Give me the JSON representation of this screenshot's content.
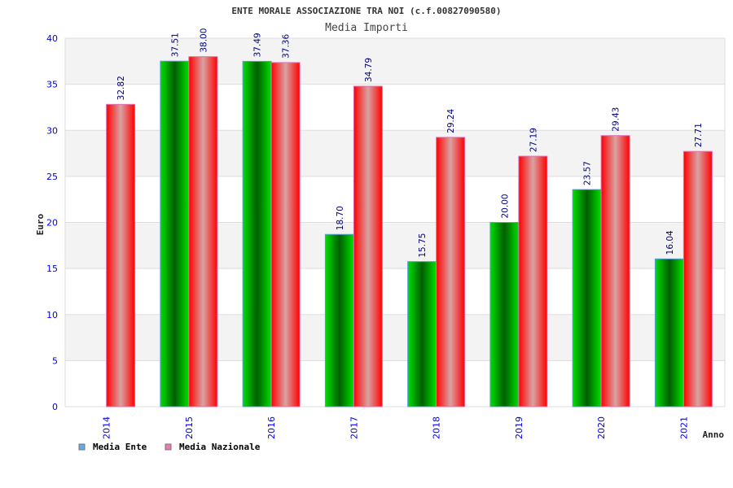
{
  "chart_data": {
    "type": "bar",
    "title": "ENTE MORALE ASSOCIAZIONE TRA NOI (c.f.00827090580)",
    "subtitle": "Media Importi",
    "xlabel": "Anno",
    "ylabel": "Euro",
    "ylim": [
      0,
      40
    ],
    "yticks": [
      "0",
      "5",
      "10",
      "15",
      "20",
      "25",
      "30",
      "35",
      "40"
    ],
    "categories": [
      "2014",
      "2015",
      "2016",
      "2017",
      "2018",
      "2019",
      "2020",
      "2021"
    ],
    "series": [
      {
        "name": "Media Ente",
        "color": "#6aa6e8",
        "values": [
          null,
          37.51,
          37.49,
          18.7,
          15.75,
          20.0,
          23.57,
          16.04
        ],
        "labels": [
          "",
          "37.51",
          "37.49",
          "18.70",
          "15.75",
          "20.00",
          "23.57",
          "16.04"
        ]
      },
      {
        "name": "Media Nazionale",
        "color": "#e87ab0",
        "values": [
          32.82,
          38.0,
          37.36,
          34.79,
          29.24,
          27.19,
          29.43,
          27.71
        ],
        "labels": [
          "32.82",
          "38.00",
          "37.36",
          "34.79",
          "29.24",
          "27.19",
          "29.43",
          "27.71"
        ]
      }
    ],
    "grid": true,
    "legend": "bottom-left"
  }
}
